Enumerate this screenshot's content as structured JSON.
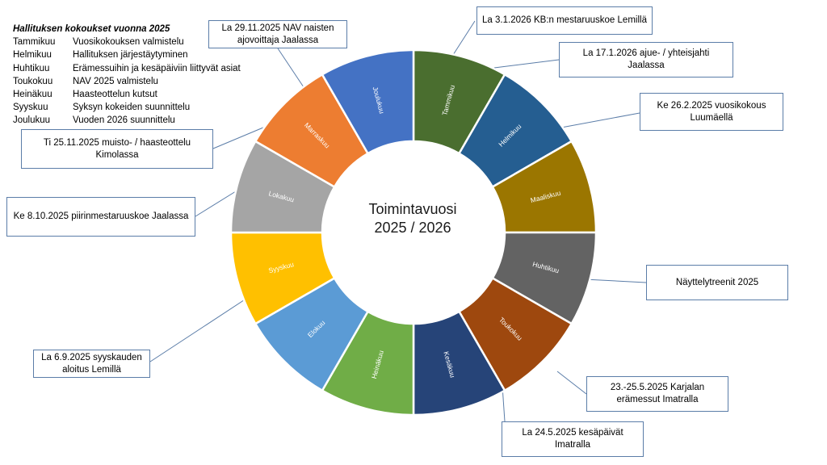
{
  "legend": {
    "title": "Hallituksen kokoukset vuonna 2025",
    "rows": [
      {
        "month": "Tammikuu",
        "text": "Vuosikokouksen valmistelu"
      },
      {
        "month": "Helmikuu",
        "text": "Hallituksen järjestäytyminen"
      },
      {
        "month": "Huhtikuu",
        "text": "Erämessuihin ja kesäpäiviin liittyvät asiat"
      },
      {
        "month": "Toukokuu",
        "text": "NAV 2025 valmistelu"
      },
      {
        "month": "Heinäkuu",
        "text": "Haasteottelun kutsut"
      },
      {
        "month": "Syyskuu",
        "text": "Syksyn kokeiden suunnittelu"
      },
      {
        "month": "Joulukuu",
        "text": "Vuoden 2026 suunnittelu"
      }
    ]
  },
  "center": {
    "line1": "Toimintavuosi",
    "line2": "2025 / 2026"
  },
  "months": [
    {
      "label": "Tammikuu",
      "color": "#4a6e2f"
    },
    {
      "label": "Helmikuu",
      "color": "#255e91"
    },
    {
      "label": "Maaliskuu",
      "color": "#9b7600"
    },
    {
      "label": "Huhtikuu",
      "color": "#636363"
    },
    {
      "label": "Toukokuu",
      "color": "#9e480e"
    },
    {
      "label": "Kesäkuu",
      "color": "#264478"
    },
    {
      "label": "Heinäkuu",
      "color": "#70ad47"
    },
    {
      "label": "Elokuu",
      "color": "#5b9bd5"
    },
    {
      "label": "Syyskuu",
      "color": "#ffc000"
    },
    {
      "label": "Lokakuu",
      "color": "#a5a5a5"
    },
    {
      "label": "Marraskuu",
      "color": "#ed7d31"
    },
    {
      "label": "Joulukuu",
      "color": "#4472c4"
    }
  ],
  "events": {
    "jan_kb": "La 3.1.2026 KB:n mestaruuskoe Lemillä",
    "jan_hunt": "La 17.1.2026 ajue- / yhteisjahti Jaalassa",
    "feb_meeting": "Ke 26.2.2025 vuosikokous Luumäellä",
    "apr_show": "Näyttelytreenit 2025",
    "may_fair": "23.-25.5.2025 Karjalan erämessut Imatralla",
    "may_summer": "La 24.5.2025 kesäpäivät Imatralla",
    "sep_season": "La 6.9.2025 syyskauden aloitus Lemillä",
    "oct_district": "Ke 8.10.2025 piirinmestaruuskoe Jaalassa",
    "nov_memorial": "Ti 25.11.2025 muisto- / haasteottelu Kimolassa",
    "nov_nav": "La 29.11.2025 NAV naisten ajovoittaja Jaalassa"
  }
}
